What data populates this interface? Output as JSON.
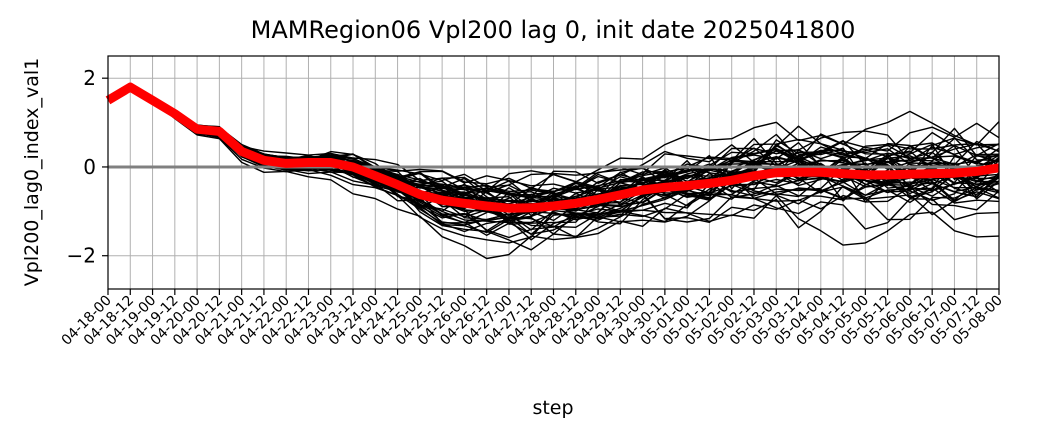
{
  "chart_data": {
    "type": "line",
    "title": "MAMRegion06 Vpl200 lag 0, init date 2025041800",
    "xlabel": "step",
    "ylabel": "Vpl200_lag0_index_val1",
    "ylim": [
      -2.75,
      2.5
    ],
    "yticks": [
      -2,
      0,
      2
    ],
    "yticklabels": [
      "−2",
      "0",
      "2"
    ],
    "grid": true,
    "legend": "none",
    "categories": [
      "04-18-00",
      "04-18-12",
      "04-19-00",
      "04-19-12",
      "04-20-00",
      "04-20-12",
      "04-21-00",
      "04-21-12",
      "04-22-00",
      "04-22-12",
      "04-23-00",
      "04-23-12",
      "04-24-00",
      "04-24-12",
      "04-25-00",
      "04-25-12",
      "04-26-00",
      "04-26-12",
      "04-27-00",
      "04-27-12",
      "04-28-00",
      "04-28-12",
      "04-29-00",
      "04-29-12",
      "04-30-00",
      "04-30-12",
      "05-01-00",
      "05-01-12",
      "05-02-00",
      "05-02-12",
      "05-03-00",
      "05-03-12",
      "05-04-00",
      "05-04-12",
      "05-05-00",
      "05-05-12",
      "05-06-00",
      "05-06-12",
      "05-07-00",
      "05-07-12",
      "05-08-00"
    ],
    "zero_line": 0,
    "colors": {
      "members": "#000000",
      "mean": "#ff0000",
      "zero_line": "#808080",
      "grid": "#b0b0b0"
    },
    "mean": [
      1.5,
      1.8,
      1.5,
      1.2,
      0.85,
      0.8,
      0.35,
      0.15,
      0.08,
      0.1,
      0.1,
      0.0,
      -0.2,
      -0.4,
      -0.62,
      -0.75,
      -0.82,
      -0.88,
      -0.93,
      -0.92,
      -0.88,
      -0.82,
      -0.73,
      -0.63,
      -0.52,
      -0.46,
      -0.42,
      -0.37,
      -0.3,
      -0.2,
      -0.13,
      -0.12,
      -0.12,
      -0.15,
      -0.18,
      -0.18,
      -0.16,
      -0.15,
      -0.14,
      -0.1,
      -0.02
    ],
    "ensemble": {
      "members": 50,
      "start": [
        1.5,
        1.8,
        1.5,
        1.2,
        0.85,
        0.8
      ],
      "spread": [
        0,
        0,
        0.04,
        0.08,
        0.12,
        0.14,
        0.17,
        0.2,
        0.24,
        0.28,
        0.32,
        0.38,
        0.45,
        0.55,
        0.65,
        0.75,
        0.82,
        0.88,
        0.9,
        0.88,
        0.85,
        0.82,
        0.8,
        0.8,
        0.82,
        0.85,
        0.9,
        0.95,
        0.98,
        1.0,
        1.02,
        1.02,
        1.03,
        1.03,
        1.04,
        1.04,
        1.04,
        1.05,
        1.05,
        1.05,
        1.05
      ]
    }
  }
}
